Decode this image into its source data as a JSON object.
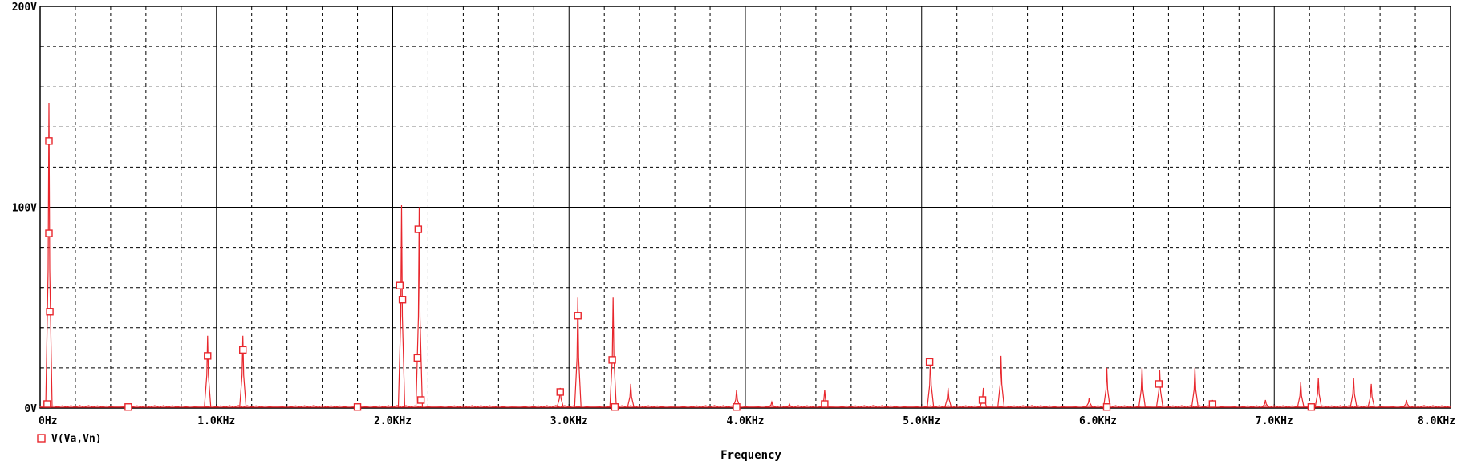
{
  "chart_data": {
    "type": "line",
    "title": "",
    "xlabel": "Frequency",
    "ylabel": "",
    "xlim": [
      0,
      8000
    ],
    "ylim": [
      0,
      200
    ],
    "x_ticks": [
      {
        "value": 0,
        "label": "0Hz"
      },
      {
        "value": 1000,
        "label": "1.0KHz"
      },
      {
        "value": 2000,
        "label": "2.0KHz"
      },
      {
        "value": 3000,
        "label": "3.0KHz"
      },
      {
        "value": 4000,
        "label": "4.0KHz"
      },
      {
        "value": 5000,
        "label": "5.0KHz"
      },
      {
        "value": 6000,
        "label": "6.0KHz"
      },
      {
        "value": 7000,
        "label": "7.0KHz"
      },
      {
        "value": 8000,
        "label": "8.0KHz"
      }
    ],
    "y_ticks": [
      {
        "value": 0,
        "label": "0V"
      },
      {
        "value": 100,
        "label": "100V"
      },
      {
        "value": 200,
        "label": "200V"
      }
    ],
    "grid": true,
    "legend_position": "bottom-left",
    "series": [
      {
        "name": "V(Va,Vn)",
        "color": "#e8262c",
        "marker": "square",
        "peaks": [
          {
            "x": 50,
            "y": 152
          },
          {
            "x": 950,
            "y": 36
          },
          {
            "x": 1150,
            "y": 36
          },
          {
            "x": 2050,
            "y": 101
          },
          {
            "x": 2150,
            "y": 100
          },
          {
            "x": 2950,
            "y": 10
          },
          {
            "x": 3050,
            "y": 55
          },
          {
            "x": 3250,
            "y": 55
          },
          {
            "x": 3350,
            "y": 12
          },
          {
            "x": 3950,
            "y": 9
          },
          {
            "x": 4150,
            "y": 3
          },
          {
            "x": 4250,
            "y": 2
          },
          {
            "x": 4450,
            "y": 9
          },
          {
            "x": 5050,
            "y": 25
          },
          {
            "x": 5150,
            "y": 10
          },
          {
            "x": 5350,
            "y": 10
          },
          {
            "x": 5450,
            "y": 26
          },
          {
            "x": 5950,
            "y": 5
          },
          {
            "x": 6050,
            "y": 20
          },
          {
            "x": 6250,
            "y": 20
          },
          {
            "x": 6350,
            "y": 19
          },
          {
            "x": 6550,
            "y": 20
          },
          {
            "x": 6650,
            "y": 4
          },
          {
            "x": 6950,
            "y": 4
          },
          {
            "x": 7150,
            "y": 13
          },
          {
            "x": 7250,
            "y": 15
          },
          {
            "x": 7450,
            "y": 15
          },
          {
            "x": 7550,
            "y": 12
          },
          {
            "x": 7750,
            "y": 4
          }
        ],
        "markers": [
          {
            "x": 40,
            "y": 2
          },
          {
            "x": 50,
            "y": 133
          },
          {
            "x": 50,
            "y": 87
          },
          {
            "x": 55,
            "y": 48
          },
          {
            "x": 500,
            "y": 0.5
          },
          {
            "x": 950,
            "y": 26
          },
          {
            "x": 1150,
            "y": 29
          },
          {
            "x": 1800,
            "y": 0.5
          },
          {
            "x": 2040,
            "y": 61
          },
          {
            "x": 2055,
            "y": 54
          },
          {
            "x": 2140,
            "y": 25
          },
          {
            "x": 2145,
            "y": 89
          },
          {
            "x": 2160,
            "y": 4
          },
          {
            "x": 2950,
            "y": 8
          },
          {
            "x": 3050,
            "y": 46
          },
          {
            "x": 3245,
            "y": 24
          },
          {
            "x": 3260,
            "y": 0.5
          },
          {
            "x": 3950,
            "y": 0.5
          },
          {
            "x": 4450,
            "y": 2
          },
          {
            "x": 5045,
            "y": 23
          },
          {
            "x": 5345,
            "y": 4
          },
          {
            "x": 6050,
            "y": 0.5
          },
          {
            "x": 6345,
            "y": 12
          },
          {
            "x": 6650,
            "y": 2
          },
          {
            "x": 7210,
            "y": 0.5
          }
        ]
      }
    ]
  }
}
